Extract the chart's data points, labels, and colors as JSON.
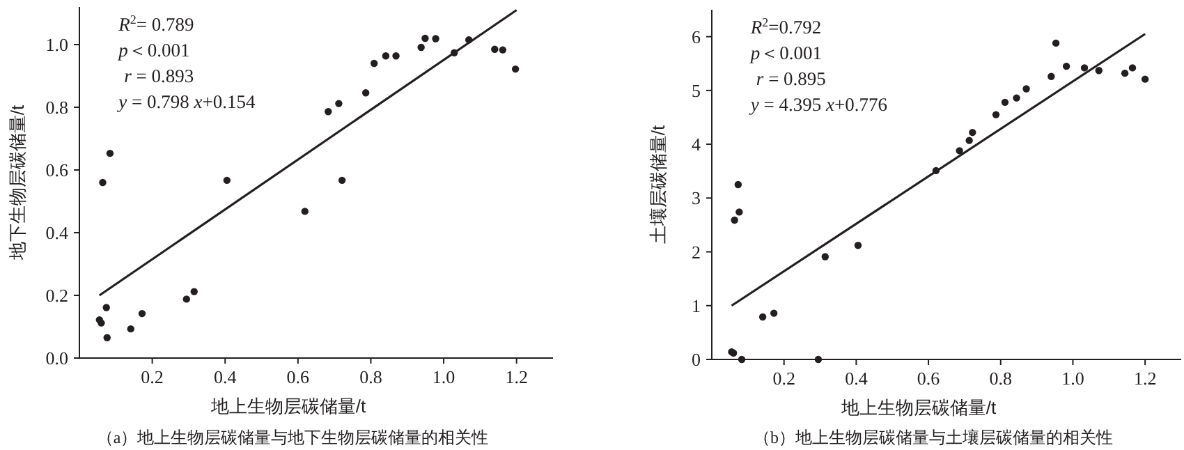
{
  "chart_data": [
    {
      "type": "scatter",
      "xlabel": "地上生物层碳储量/t",
      "ylabel": "地下生物层碳储量/t",
      "xlim": [
        0,
        1.3
      ],
      "ylim": [
        0,
        1.12
      ],
      "xticks": [
        0.2,
        0.4,
        0.6,
        0.8,
        {
          "value": 1,
          "label": "1.0"
        },
        1.2
      ],
      "yticks": [
        {
          "value": 0,
          "label": "0.0"
        },
        0.2,
        0.4,
        0.6,
        0.8,
        {
          "value": 1,
          "label": "1.0"
        }
      ],
      "grid": false,
      "annotations": [
        "*R*$^{2}$= 0.789",
        "*p*＜0.001",
        "*r* = 0.893",
        "*y* = 0.798 *x*+0.154",
        "（a）地上生物层碳储量与地下生物层碳储量的相关性"
      ],
      "series": [
        {
          "type": "scatter",
          "marker": "circle",
          "color": "#231f20",
          "x": [
            0.055,
            0.06,
            0.064,
            0.074,
            0.076,
            0.084,
            0.141,
            0.172,
            0.294,
            0.315,
            0.405,
            0.619,
            0.683,
            0.712,
            0.721,
            0.786,
            0.809,
            0.841,
            0.869,
            0.938,
            0.949,
            0.978,
            1.029,
            1.069,
            1.14,
            1.162,
            1.197
          ],
          "values": [
            0.122,
            0.112,
            0.56,
            0.161,
            0.065,
            0.653,
            0.093,
            0.142,
            0.188,
            0.212,
            0.567,
            0.468,
            0.786,
            0.812,
            0.567,
            0.846,
            0.94,
            0.964,
            0.964,
            0.991,
            1.02,
            1.019,
            0.974,
            1.015,
            0.985,
            0.983,
            0.922
          ]
        },
        {
          "type": "line",
          "color": "#231f20",
          "x": [
            0.055,
            1.2
          ],
          "values": [
            0.2,
            1.11
          ]
        }
      ]
    },
    {
      "type": "scatter",
      "xlabel": "地上生物层碳储量/t",
      "ylabel": "土壤层碳储量/t",
      "xlim": [
        0,
        1.3
      ],
      "ylim": [
        0,
        6.5
      ],
      "xticks": [
        0.2,
        0.4,
        0.6,
        0.8,
        {
          "value": 1,
          "label": "1.0"
        },
        1.2
      ],
      "yticks": [
        0,
        1,
        2,
        3,
        4,
        5,
        6
      ],
      "grid": false,
      "annotations": [
        "*R*$^{2}$=0.792",
        "*p*＜0.001",
        "*r* = 0.895",
        "*y* = 4.395 *x*+0.776",
        "（b）地上生物层碳储量与土壤层碳储量的相关性"
      ],
      "series": [
        {
          "type": "scatter",
          "marker": "circle",
          "color": "#231f20",
          "x": [
            0.055,
            0.06,
            0.063,
            0.073,
            0.076,
            0.083,
            0.141,
            0.172,
            0.295,
            0.314,
            0.405,
            0.621,
            0.686,
            0.713,
            0.722,
            0.787,
            0.812,
            0.844,
            0.871,
            0.94,
            0.953,
            0.982,
            1.032,
            1.072,
            1.144,
            1.165,
            1.2
          ],
          "values": [
            0.14,
            0.12,
            2.59,
            3.25,
            2.74,
            0.0,
            0.79,
            0.86,
            0.0,
            1.91,
            2.12,
            3.51,
            3.88,
            4.07,
            4.22,
            4.55,
            4.78,
            4.86,
            5.03,
            5.26,
            5.88,
            5.45,
            5.42,
            5.37,
            5.32,
            5.42,
            5.21
          ]
        },
        {
          "type": "line",
          "color": "#231f20",
          "x": [
            0.055,
            1.2
          ],
          "values": [
            1.0,
            6.05
          ]
        }
      ]
    }
  ]
}
